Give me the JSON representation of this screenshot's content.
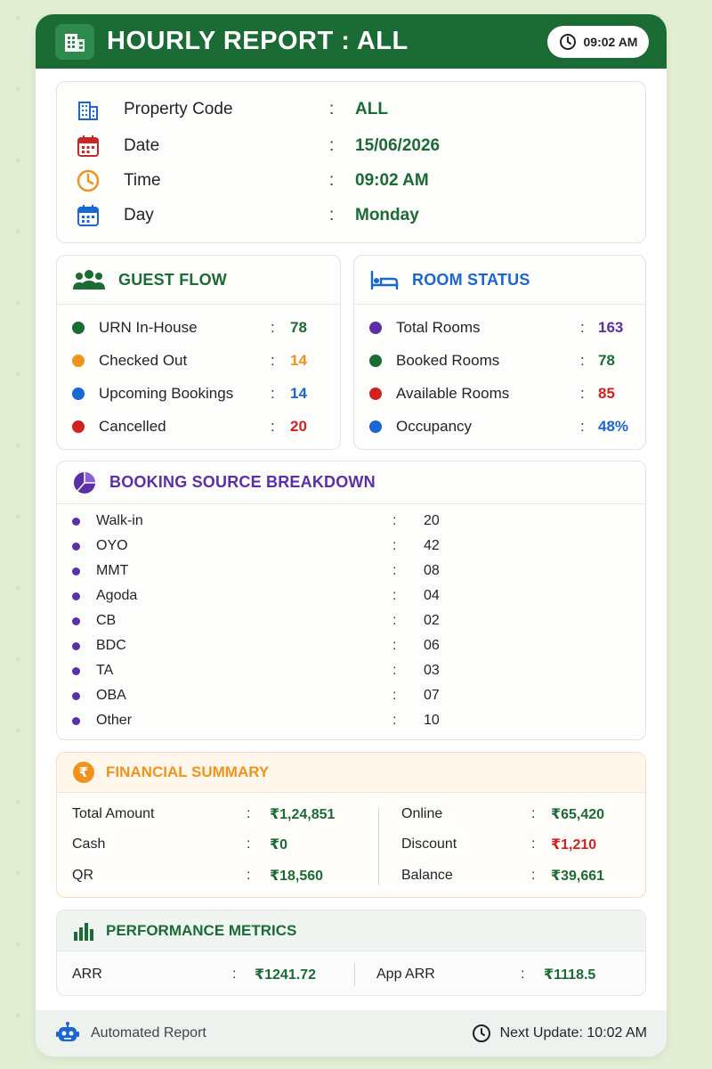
{
  "header": {
    "title": "HOURLY REPORT : ALL",
    "time": "09:02 AM"
  },
  "info": [
    {
      "label": "Property Code",
      "value": "ALL",
      "icon": "building-icon"
    },
    {
      "label": "Date",
      "value": "15/06/2026",
      "icon": "calendar-icon"
    },
    {
      "label": "Time",
      "value": "09:02 AM",
      "icon": "clock-icon"
    },
    {
      "label": "Day",
      "value": "Monday",
      "icon": "calendar-icon"
    }
  ],
  "colon": ":",
  "guest_flow": {
    "title": "GUEST FLOW",
    "items": [
      {
        "label": "URN In-House",
        "value": "78",
        "color": "#1b6b35"
      },
      {
        "label": "Checked Out",
        "value": "14",
        "color": "#f0931e"
      },
      {
        "label": "Upcoming Bookings",
        "value": "14",
        "color": "#1a66d2"
      },
      {
        "label": "Cancelled",
        "value": "20",
        "color": "#d12222"
      }
    ]
  },
  "room_status": {
    "title": "ROOM STATUS",
    "items": [
      {
        "label": "Total Rooms",
        "value": "163",
        "color": "#5b2fa8"
      },
      {
        "label": "Booked Rooms",
        "value": "78",
        "color": "#1b6b35"
      },
      {
        "label": "Available Rooms",
        "value": "85",
        "color": "#d12222"
      },
      {
        "label": "Occupancy",
        "value": "48%",
        "color": "#1a66d2"
      }
    ]
  },
  "booking_source": {
    "title": "BOOKING SOURCE BREAKDOWN",
    "items": [
      {
        "label": "Walk-in",
        "value": "20"
      },
      {
        "label": "OYO",
        "value": "42"
      },
      {
        "label": "MMT",
        "value": "08"
      },
      {
        "label": "Agoda",
        "value": "04"
      },
      {
        "label": "CB",
        "value": "02"
      },
      {
        "label": "BDC",
        "value": "06"
      },
      {
        "label": "TA",
        "value": "03"
      },
      {
        "label": "OBA",
        "value": "07"
      },
      {
        "label": "Other",
        "value": "10"
      }
    ]
  },
  "financial": {
    "title": "FINANCIAL SUMMARY",
    "left": [
      {
        "label": "Total Amount",
        "value": "₹1,24,851",
        "color": "#1b6b35"
      },
      {
        "label": "Cash",
        "value": "₹0",
        "color": "#1b6b35"
      },
      {
        "label": "QR",
        "value": "₹18,560",
        "color": "#1b6b35"
      }
    ],
    "right": [
      {
        "label": "Online",
        "value": "₹65,420",
        "color": "#1b6b35"
      },
      {
        "label": "Discount",
        "value": "₹1,210",
        "color": "#d12222"
      },
      {
        "label": "Balance",
        "value": "₹39,661",
        "color": "#1b6b35"
      }
    ]
  },
  "performance": {
    "title": "PERFORMANCE METRICS",
    "arr_label": "ARR",
    "arr_value": "₹1241.72",
    "app_arr_label": "App ARR",
    "app_arr_value": "₹1118.5"
  },
  "footer": {
    "left": "Automated Report",
    "right": "Next Update: 10:02 AM"
  },
  "colors": {
    "green": "#1b6b35",
    "purple": "#5b2fa8",
    "blue": "#1a66d2",
    "orange": "#f0931e",
    "red": "#d12222"
  }
}
